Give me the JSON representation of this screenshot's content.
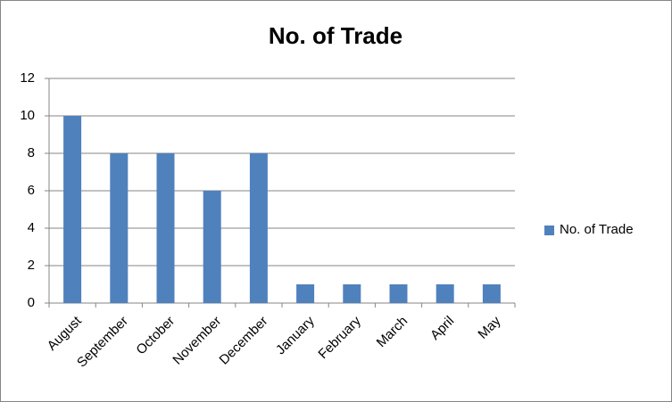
{
  "chart_data": {
    "type": "bar",
    "title": "No. of Trade",
    "categories": [
      "August",
      "September",
      "October",
      "November",
      "December",
      "January",
      "February",
      "March",
      "April",
      "May"
    ],
    "series": [
      {
        "name": "No. of Trade",
        "color": "#4f81bd",
        "values": [
          10,
          8,
          8,
          6,
          8,
          1,
          1,
          1,
          1,
          1
        ]
      }
    ],
    "ylim": [
      0,
      12
    ],
    "yticks": [
      0,
      2,
      4,
      6,
      8,
      10,
      12
    ],
    "grid": true,
    "legend": "right"
  }
}
